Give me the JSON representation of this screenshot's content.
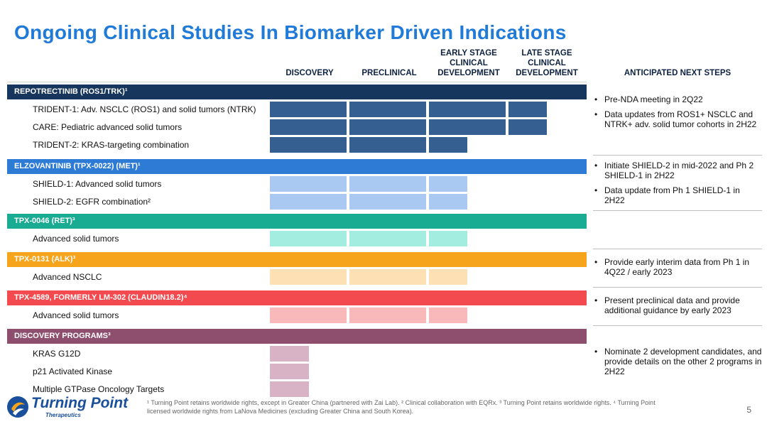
{
  "title": "Ongoing Clinical Studies In Biomarker Driven Indications",
  "columns": {
    "discovery": "DISCOVERY",
    "preclinical": "PRECLINICAL",
    "early": "EARLY STAGE\nCLINICAL\nDEVELOPMENT",
    "late": "LATE STAGE\nCLINICAL\nDEVELOPMENT",
    "next_steps": "ANTICIPATED NEXT STEPS"
  },
  "programs": [
    {
      "name": "REPOTRECTINIB (ROS1/TRK)¹",
      "color": "#17365d",
      "bar_color": "#365f91",
      "rows": [
        {
          "label": "TRIDENT-1: Adv. NSCLC (ROS1) and solid tumors (NTRK)",
          "stage": "late"
        },
        {
          "label": "CARE: Pediatric advanced solid tumors",
          "stage": "late"
        },
        {
          "label": "TRIDENT-2: KRAS-targeting combination",
          "stage": "early-partial"
        }
      ]
    },
    {
      "name": "ELZOVANTINIB (TPX-0022) (MET)¹",
      "color": "#2e7bd6",
      "bar_color": "#a9c8f2",
      "rows": [
        {
          "label": "SHIELD-1: Advanced solid tumors",
          "stage": "early"
        },
        {
          "label": "SHIELD-2: EGFR combination²",
          "stage": "early"
        }
      ]
    },
    {
      "name": "TPX-0046 (RET)³",
      "color": "#1aab93",
      "bar_color": "#a3ede0",
      "rows": [
        {
          "label": "Advanced solid tumors",
          "stage": "early"
        }
      ]
    },
    {
      "name": "TPX-0131 (ALK)³",
      "color": "#f5a41c",
      "bar_color": "#fde0b4",
      "rows": [
        {
          "label": "Advanced NSCLC",
          "stage": "early"
        }
      ]
    },
    {
      "name": "TPX-4589, FORMERLY LM-302 (CLAUDIN18.2)⁴",
      "color": "#f24a4e",
      "bar_color": "#f9b8b9",
      "rows": [
        {
          "label": "Advanced solid tumors",
          "stage": "early"
        }
      ]
    },
    {
      "name": "DISCOVERY PROGRAMS³",
      "color": "#8e4f6e",
      "bar_color": "#d8b3c5",
      "rows": [
        {
          "label": "KRAS G12D",
          "stage": "discovery"
        },
        {
          "label": "p21 Activated Kinase",
          "stage": "discovery"
        },
        {
          "label": "Multiple GTPase Oncology Targets",
          "stage": "discovery"
        }
      ]
    }
  ],
  "next_steps": [
    [
      "Pre-NDA meeting in 2Q22",
      "Data updates from ROS1+ NSCLC and NTRK+ adv. solid tumor cohorts in 2H22"
    ],
    [
      "Initiate SHIELD-2 in mid-2022 and Ph 2 SHIELD-1 in 2H22",
      "Data update from Ph 1 SHIELD-1 in 2H22"
    ],
    [],
    [
      "Provide early interim data from Ph 1 in 4Q22 / early 2023"
    ],
    [
      "Present preclinical data and provide additional guidance by early 2023"
    ],
    [
      "Nominate 2 development candidates, and provide details on the other 2 programs in 2H22"
    ]
  ],
  "footnote": "¹ Turning Point retains worldwide rights, except in Greater China (partnered with Zai Lab). ² Clinical collaboration with EQRx. ³ Turning Point retains worldwide rights. ⁴ Turning Point licensed worldwide rights from LaNova Medicines (excluding Greater China and South Korea).",
  "page_number": "5",
  "logo": {
    "name": "Turning Point",
    "sub": "Therapeutics"
  }
}
